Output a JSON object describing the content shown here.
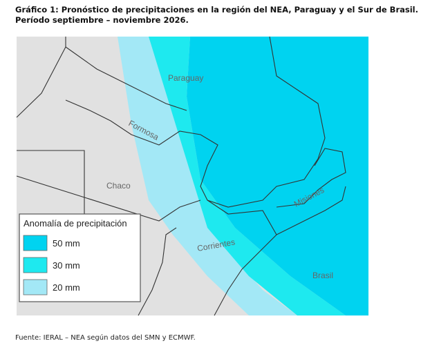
{
  "header": {
    "title_line1": "Gráfico 1: Pronóstico de precipitaciones en la región del NEA, Paraguay y el Sur de Brasil.",
    "title_line2": "Período septiembre – noviembre 2026."
  },
  "map": {
    "labels": [
      "Paraguay",
      "Formosa",
      "Chaco",
      "Misiones",
      "Corrientes",
      "Brasil"
    ]
  },
  "legend": {
    "title": "Anomalía de precipitación",
    "items": [
      {
        "label": "50 mm",
        "color": "#00d3f0"
      },
      {
        "label": "30 mm",
        "color": "#1ee9ef"
      },
      {
        "label": "20 mm",
        "color": "#a3e8f6"
      }
    ]
  },
  "source": "Fuente: IERAL – NEA según datos del SMN y ECMWF."
}
